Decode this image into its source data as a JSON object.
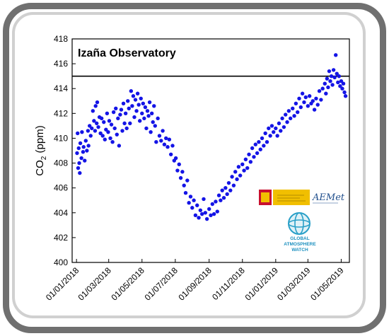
{
  "chart_data": {
    "type": "scatter",
    "title": "Izaña Observatory",
    "ylabel_main": "CO",
    "ylabel_sub": "2",
    "ylabel_unit": " (ppm)",
    "ylim": [
      400,
      418
    ],
    "yticks": [
      400,
      402,
      404,
      406,
      408,
      410,
      412,
      414,
      416,
      418
    ],
    "xticks": [
      "01/01/2018",
      "01/03/2018",
      "01/05/2018",
      "01/07/2018",
      "01/09/2018",
      "01/11/2018",
      "01/01/2019",
      "01/03/2019",
      "01/05/2019"
    ],
    "reference_line": 415,
    "marker_color": "#1414e6",
    "series": [
      {
        "points": [
          [
            "2018-01-02",
            408.8
          ],
          [
            "2018-01-03",
            410.4
          ],
          [
            "2018-01-04",
            407.6
          ],
          [
            "2018-01-05",
            409.2
          ],
          [
            "2018-01-06",
            408.0
          ],
          [
            "2018-01-07",
            407.2
          ],
          [
            "2018-01-08",
            409.6
          ],
          [
            "2018-01-10",
            408.4
          ],
          [
            "2018-01-11",
            410.5
          ],
          [
            "2018-01-13",
            408.9
          ],
          [
            "2018-01-14",
            409.3
          ],
          [
            "2018-01-16",
            408.2
          ],
          [
            "2018-01-18",
            409.8
          ],
          [
            "2018-01-20",
            409.0
          ],
          [
            "2018-01-22",
            410.6
          ],
          [
            "2018-01-23",
            409.4
          ],
          [
            "2018-01-25",
            411.0
          ],
          [
            "2018-01-27",
            410.2
          ],
          [
            "2018-01-29",
            410.8
          ],
          [
            "2018-01-31",
            412.2
          ],
          [
            "2018-02-02",
            411.4
          ],
          [
            "2018-02-04",
            410.6
          ],
          [
            "2018-02-05",
            412.6
          ],
          [
            "2018-02-07",
            411.2
          ],
          [
            "2018-02-08",
            412.9
          ],
          [
            "2018-02-10",
            410.9
          ],
          [
            "2018-02-12",
            411.7
          ],
          [
            "2018-02-14",
            410.4
          ],
          [
            "2018-02-16",
            411.6
          ],
          [
            "2018-02-18",
            410.2
          ],
          [
            "2018-02-20",
            411.3
          ],
          [
            "2018-02-22",
            409.9
          ],
          [
            "2018-02-24",
            410.7
          ],
          [
            "2018-02-26",
            412.0
          ],
          [
            "2018-02-28",
            410.5
          ],
          [
            "2018-03-02",
            411.4
          ],
          [
            "2018-03-04",
            410.0
          ],
          [
            "2018-03-06",
            411.1
          ],
          [
            "2018-03-08",
            409.7
          ],
          [
            "2018-03-10",
            412.1
          ],
          [
            "2018-03-12",
            410.8
          ],
          [
            "2018-03-14",
            412.4
          ],
          [
            "2018-03-16",
            410.3
          ],
          [
            "2018-03-18",
            411.6
          ],
          [
            "2018-03-20",
            409.4
          ],
          [
            "2018-03-22",
            411.9
          ],
          [
            "2018-03-24",
            412.3
          ],
          [
            "2018-03-26",
            410.6
          ],
          [
            "2018-03-28",
            412.8
          ],
          [
            "2018-03-30",
            411.2
          ],
          [
            "2018-04-01",
            412.0
          ],
          [
            "2018-04-03",
            410.8
          ],
          [
            "2018-04-05",
            413.0
          ],
          [
            "2018-04-07",
            412.4
          ],
          [
            "2018-04-09",
            411.2
          ],
          [
            "2018-04-11",
            413.8
          ],
          [
            "2018-04-13",
            412.6
          ],
          [
            "2018-04-15",
            413.4
          ],
          [
            "2018-04-17",
            411.7
          ],
          [
            "2018-04-19",
            413.1
          ],
          [
            "2018-04-21",
            412.2
          ],
          [
            "2018-04-23",
            413.6
          ],
          [
            "2018-04-25",
            412.7
          ],
          [
            "2018-04-27",
            411.4
          ],
          [
            "2018-04-29",
            413.2
          ],
          [
            "2018-05-01",
            412.0
          ],
          [
            "2018-05-03",
            412.8
          ],
          [
            "2018-05-05",
            411.6
          ],
          [
            "2018-05-07",
            412.5
          ],
          [
            "2018-05-09",
            410.8
          ],
          [
            "2018-05-11",
            412.2
          ],
          [
            "2018-05-13",
            411.8
          ],
          [
            "2018-05-15",
            412.9
          ],
          [
            "2018-05-17",
            410.5
          ],
          [
            "2018-05-19",
            412.0
          ],
          [
            "2018-05-21",
            411.3
          ],
          [
            "2018-05-23",
            412.6
          ],
          [
            "2018-05-25",
            411.0
          ],
          [
            "2018-05-27",
            409.7
          ],
          [
            "2018-05-30",
            411.6
          ],
          [
            "2018-06-02",
            410.2
          ],
          [
            "2018-06-05",
            409.8
          ],
          [
            "2018-06-08",
            410.6
          ],
          [
            "2018-06-11",
            409.5
          ],
          [
            "2018-06-14",
            410.0
          ],
          [
            "2018-06-17",
            409.3
          ],
          [
            "2018-06-20",
            409.9
          ],
          [
            "2018-06-23",
            408.7
          ],
          [
            "2018-06-26",
            409.4
          ],
          [
            "2018-06-29",
            408.2
          ],
          [
            "2018-07-02",
            408.4
          ],
          [
            "2018-07-05",
            407.4
          ],
          [
            "2018-07-08",
            407.9
          ],
          [
            "2018-07-11",
            406.8
          ],
          [
            "2018-07-14",
            407.3
          ],
          [
            "2018-07-17",
            406.2
          ],
          [
            "2018-07-20",
            405.6
          ],
          [
            "2018-07-23",
            406.6
          ],
          [
            "2018-07-26",
            404.8
          ],
          [
            "2018-07-29",
            405.3
          ],
          [
            "2018-08-01",
            404.4
          ],
          [
            "2018-08-04",
            405.0
          ],
          [
            "2018-08-07",
            403.8
          ],
          [
            "2018-08-10",
            404.6
          ],
          [
            "2018-08-13",
            403.6
          ],
          [
            "2018-08-16",
            404.2
          ],
          [
            "2018-08-19",
            403.9
          ],
          [
            "2018-08-22",
            405.1
          ],
          [
            "2018-08-25",
            404.0
          ],
          [
            "2018-08-28",
            403.5
          ],
          [
            "2018-09-01",
            404.3
          ],
          [
            "2018-09-04",
            403.8
          ],
          [
            "2018-09-07",
            404.7
          ],
          [
            "2018-09-10",
            403.9
          ],
          [
            "2018-09-13",
            404.9
          ],
          [
            "2018-09-16",
            404.1
          ],
          [
            "2018-09-19",
            405.4
          ],
          [
            "2018-09-22",
            405.0
          ],
          [
            "2018-09-25",
            405.8
          ],
          [
            "2018-09-28",
            405.2
          ],
          [
            "2018-10-01",
            406.0
          ],
          [
            "2018-10-04",
            405.5
          ],
          [
            "2018-10-07",
            406.4
          ],
          [
            "2018-10-10",
            405.8
          ],
          [
            "2018-10-13",
            406.9
          ],
          [
            "2018-10-16",
            406.2
          ],
          [
            "2018-10-19",
            407.3
          ],
          [
            "2018-10-22",
            406.7
          ],
          [
            "2018-10-25",
            407.7
          ],
          [
            "2018-10-28",
            407.0
          ],
          [
            "2018-11-01",
            407.9
          ],
          [
            "2018-11-04",
            407.4
          ],
          [
            "2018-11-07",
            408.3
          ],
          [
            "2018-11-10",
            407.6
          ],
          [
            "2018-11-13",
            408.7
          ],
          [
            "2018-11-16",
            408.1
          ],
          [
            "2018-11-19",
            409.2
          ],
          [
            "2018-11-22",
            408.5
          ],
          [
            "2018-11-25",
            409.5
          ],
          [
            "2018-11-28",
            408.8
          ],
          [
            "2018-12-01",
            409.7
          ],
          [
            "2018-12-04",
            409.1
          ],
          [
            "2018-12-07",
            410.0
          ],
          [
            "2018-12-10",
            409.4
          ],
          [
            "2018-12-13",
            410.4
          ],
          [
            "2018-12-16",
            409.7
          ],
          [
            "2018-12-19",
            410.8
          ],
          [
            "2018-12-22",
            410.2
          ],
          [
            "2018-12-25",
            411.0
          ],
          [
            "2018-12-28",
            410.5
          ],
          [
            "2019-01-01",
            410.8
          ],
          [
            "2019-01-04",
            410.2
          ],
          [
            "2019-01-07",
            411.2
          ],
          [
            "2019-01-10",
            410.6
          ],
          [
            "2019-01-13",
            411.6
          ],
          [
            "2019-01-16",
            410.9
          ],
          [
            "2019-01-19",
            411.9
          ],
          [
            "2019-01-22",
            411.3
          ],
          [
            "2019-01-25",
            412.2
          ],
          [
            "2019-01-28",
            411.6
          ],
          [
            "2019-02-01",
            412.4
          ],
          [
            "2019-02-04",
            411.8
          ],
          [
            "2019-02-07",
            412.8
          ],
          [
            "2019-02-10",
            412.1
          ],
          [
            "2019-02-13",
            413.2
          ],
          [
            "2019-02-16",
            412.5
          ],
          [
            "2019-02-19",
            413.6
          ],
          [
            "2019-02-22",
            412.9
          ],
          [
            "2019-02-25",
            413.3
          ],
          [
            "2019-03-01",
            412.6
          ],
          [
            "2019-03-04",
            413.4
          ],
          [
            "2019-03-07",
            412.8
          ],
          [
            "2019-03-10",
            413.0
          ],
          [
            "2019-03-13",
            412.3
          ],
          [
            "2019-03-16",
            413.2
          ],
          [
            "2019-03-19",
            412.7
          ],
          [
            "2019-03-22",
            413.8
          ],
          [
            "2019-03-25",
            413.1
          ],
          [
            "2019-03-28",
            414.0
          ],
          [
            "2019-04-01",
            414.4
          ],
          [
            "2019-04-03",
            413.6
          ],
          [
            "2019-04-05",
            414.8
          ],
          [
            "2019-04-07",
            414.1
          ],
          [
            "2019-04-09",
            415.4
          ],
          [
            "2019-04-11",
            414.6
          ],
          [
            "2019-04-13",
            415.0
          ],
          [
            "2019-04-15",
            414.3
          ],
          [
            "2019-04-17",
            415.5
          ],
          [
            "2019-04-19",
            414.9
          ],
          [
            "2019-04-21",
            416.7
          ],
          [
            "2019-04-23",
            415.2
          ],
          [
            "2019-04-25",
            414.5
          ],
          [
            "2019-04-27",
            415.0
          ],
          [
            "2019-04-29",
            414.2
          ],
          [
            "2019-05-01",
            414.6
          ],
          [
            "2019-05-03",
            414.0
          ],
          [
            "2019-05-05",
            414.4
          ],
          [
            "2019-05-07",
            413.7
          ],
          [
            "2019-05-09",
            413.4
          ]
        ]
      }
    ]
  },
  "logos": {
    "aemet_text": "AEMet",
    "gaw_line1": "GLOBAL",
    "gaw_line2": "ATMOSPHERE",
    "gaw_line3": "WATCH"
  },
  "colors": {
    "frame": "#707070",
    "inner_border": "#d0d0d0",
    "reference_line": "#000000",
    "spain_red": "#c8102e",
    "spain_yellow": "#f1bf00"
  }
}
